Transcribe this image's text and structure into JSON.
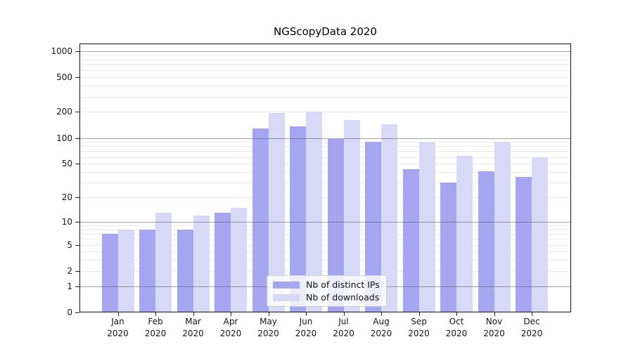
{
  "chart_data": {
    "type": "bar",
    "title": "NGScopyData 2020",
    "categories": [
      "Jan 2020",
      "Feb 2020",
      "Mar 2020",
      "Apr 2020",
      "May 2020",
      "Jun 2020",
      "Jul 2020",
      "Aug 2020",
      "Sep 2020",
      "Oct 2020",
      "Nov 2020",
      "Dec 2020"
    ],
    "series": [
      {
        "name": "Nb of distinct IPs",
        "color": "#a5a5f0",
        "values": [
          7,
          8,
          8,
          13,
          130,
          135,
          97,
          90,
          43,
          30,
          41,
          35
        ]
      },
      {
        "name": "Nb of downloads",
        "color": "#d8d8f7",
        "values": [
          8,
          13,
          12,
          15,
          195,
          200,
          160,
          145,
          88,
          62,
          90,
          60
        ]
      }
    ],
    "xlabel": "",
    "ylabel": "",
    "y_scale": "log10(value+1)",
    "ylim": [
      0,
      1230
    ],
    "yticks": [
      0,
      1,
      2,
      5,
      10,
      20,
      50,
      100,
      200,
      500,
      1000
    ],
    "major_grid_values": [
      1,
      10,
      100,
      1000
    ],
    "minor_grid_values": [
      2,
      3,
      4,
      5,
      6,
      7,
      8,
      9,
      20,
      30,
      40,
      50,
      60,
      70,
      80,
      90,
      200,
      300,
      400,
      500,
      600,
      700,
      800,
      900
    ],
    "grid": "horizontal only",
    "legend_position": "inside bottom-center"
  },
  "colors": {
    "background": "#ffffff",
    "text": "#151515",
    "spine": "#111111",
    "minor_grid": "#eaeaea",
    "major_grid": "#8f8f8f",
    "bar_distinct_ips": "#a5a5f0",
    "bar_downloads": "#d8d8f7"
  }
}
